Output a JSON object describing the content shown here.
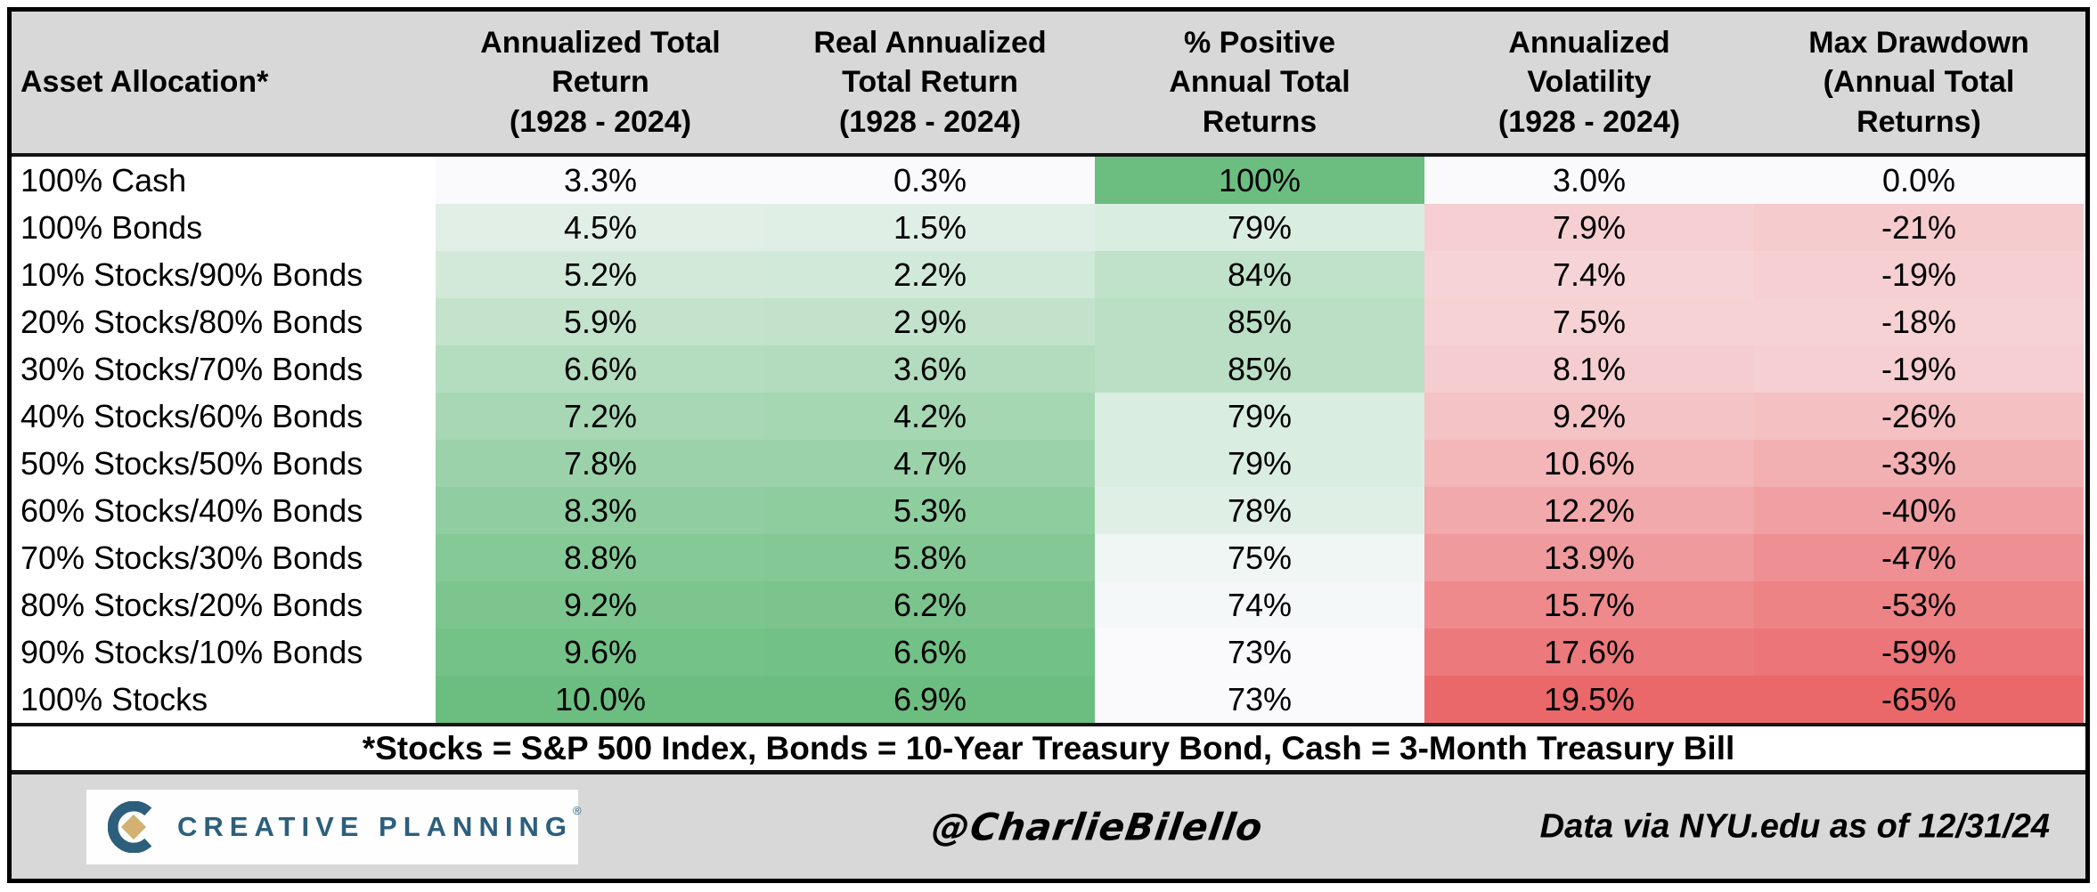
{
  "table": {
    "columns": [
      {
        "id": "allocation",
        "label": "Asset Allocation*"
      },
      {
        "id": "ann_return",
        "label": "Annualized Total\nReturn\n(1928 - 2024)"
      },
      {
        "id": "real_return",
        "label": "Real Annualized\nTotal Return\n(1928 - 2024)"
      },
      {
        "id": "pct_positive",
        "label": "% Positive\nAnnual Total\nReturns"
      },
      {
        "id": "volatility",
        "label": "Annualized\nVolatility\n(1928 - 2024)"
      },
      {
        "id": "max_drawdown",
        "label": "Max Drawdown\n(Annual Total\nReturns)"
      }
    ],
    "rows": [
      {
        "allocation": "100% Cash",
        "values": [
          "3.3%",
          "0.3%",
          "100%",
          "3.0%",
          "0.0%"
        ]
      },
      {
        "allocation": "100% Bonds",
        "values": [
          "4.5%",
          "1.5%",
          "79%",
          "7.9%",
          "-21%"
        ]
      },
      {
        "allocation": "10% Stocks/90% Bonds",
        "values": [
          "5.2%",
          "2.2%",
          "84%",
          "7.4%",
          "-19%"
        ]
      },
      {
        "allocation": "20% Stocks/80% Bonds",
        "values": [
          "5.9%",
          "2.9%",
          "85%",
          "7.5%",
          "-18%"
        ]
      },
      {
        "allocation": "30% Stocks/70% Bonds",
        "values": [
          "6.6%",
          "3.6%",
          "85%",
          "8.1%",
          "-19%"
        ]
      },
      {
        "allocation": "40% Stocks/60% Bonds",
        "values": [
          "7.2%",
          "4.2%",
          "79%",
          "9.2%",
          "-26%"
        ]
      },
      {
        "allocation": "50% Stocks/50% Bonds",
        "values": [
          "7.8%",
          "4.7%",
          "79%",
          "10.6%",
          "-33%"
        ]
      },
      {
        "allocation": "60% Stocks/40% Bonds",
        "values": [
          "8.3%",
          "5.3%",
          "78%",
          "12.2%",
          "-40%"
        ]
      },
      {
        "allocation": "70% Stocks/30% Bonds",
        "values": [
          "8.8%",
          "5.8%",
          "75%",
          "13.9%",
          "-47%"
        ]
      },
      {
        "allocation": "80% Stocks/20% Bonds",
        "values": [
          "9.2%",
          "6.2%",
          "74%",
          "15.7%",
          "-53%"
        ]
      },
      {
        "allocation": "90% Stocks/10% Bonds",
        "values": [
          "9.6%",
          "6.6%",
          "73%",
          "17.6%",
          "-59%"
        ]
      },
      {
        "allocation": "100% Stocks",
        "values": [
          "10.0%",
          "6.9%",
          "73%",
          "19.5%",
          "-65%"
        ]
      }
    ]
  },
  "heatmap": {
    "base_color": "#fafafd",
    "scales": [
      {
        "column": "ann_return",
        "min": 3.3,
        "max": 10.0,
        "color": "#6cbe80"
      },
      {
        "column": "real_return",
        "min": 0.3,
        "max": 6.9,
        "color": "#6cbe80"
      },
      {
        "column": "pct_positive",
        "min": 73,
        "max": 100,
        "color": "#6cbe80"
      },
      {
        "column": "volatility",
        "min": 3.0,
        "max": 19.5,
        "color": "#ea686a"
      },
      {
        "column": "max_drawdown",
        "min": 0,
        "max": -65,
        "color": "#ea686a"
      }
    ]
  },
  "colors": {
    "header_bg": "#d8d8d8",
    "footer_bg": "#d8d8d8",
    "border": "#000000",
    "logo_blue": "#2d5f7c",
    "logo_gold": "#d2b173"
  },
  "footnote": {
    "text": "*Stocks = S&P 500 Index, Bonds = 10-Year Treasury Bond, Cash = 3-Month Treasury Bill"
  },
  "footer": {
    "logo": {
      "text": "CREATIVE PLANNING",
      "trademark": "®"
    },
    "handle": "@CharlieBilello",
    "source": "Data via NYU.edu as of 12/31/24"
  },
  "chart_data": {
    "type": "table",
    "title": "",
    "categories": [
      "100% Cash",
      "100% Bonds",
      "10% Stocks/90% Bonds",
      "20% Stocks/80% Bonds",
      "30% Stocks/70% Bonds",
      "40% Stocks/60% Bonds",
      "50% Stocks/50% Bonds",
      "60% Stocks/40% Bonds",
      "70% Stocks/30% Bonds",
      "80% Stocks/20% Bonds",
      "90% Stocks/10% Bonds",
      "100% Stocks"
    ],
    "series": [
      {
        "name": "Annualized Total Return (1928 - 2024)",
        "unit": "%",
        "values": [
          3.3,
          4.5,
          5.2,
          5.9,
          6.6,
          7.2,
          7.8,
          8.3,
          8.8,
          9.2,
          9.6,
          10.0
        ]
      },
      {
        "name": "Real Annualized Total Return (1928 - 2024)",
        "unit": "%",
        "values": [
          0.3,
          1.5,
          2.2,
          2.9,
          3.6,
          4.2,
          4.7,
          5.3,
          5.8,
          6.2,
          6.6,
          6.9
        ]
      },
      {
        "name": "% Positive Annual Total Returns",
        "unit": "%",
        "values": [
          100,
          79,
          84,
          85,
          85,
          79,
          79,
          78,
          75,
          74,
          73,
          73
        ]
      },
      {
        "name": "Annualized Volatility (1928 - 2024)",
        "unit": "%",
        "values": [
          3.0,
          7.9,
          7.4,
          7.5,
          8.1,
          9.2,
          10.6,
          12.2,
          13.9,
          15.7,
          17.6,
          19.5
        ]
      },
      {
        "name": "Max Drawdown (Annual Total Returns)",
        "unit": "%",
        "values": [
          0.0,
          -21,
          -19,
          -18,
          -19,
          -26,
          -33,
          -40,
          -47,
          -53,
          -59,
          -65
        ]
      }
    ],
    "layout": {
      "heatmap": "white-to-green for return columns, white-to-red for risk columns",
      "legend": "none",
      "grid": "off"
    }
  }
}
